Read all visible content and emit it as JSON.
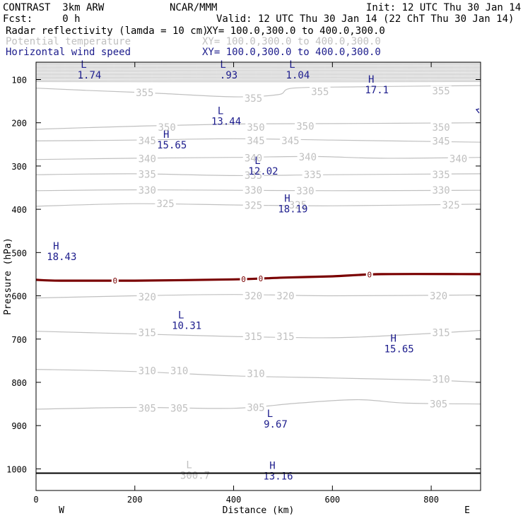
{
  "header": {
    "model": "CONTRAST  3km ARW",
    "org": "NCAR/MMM",
    "init": "Init: 12 UTC Thu 30 Jan 14",
    "fcst": "Fcst:     0 h",
    "valid": "Valid: 12 UTC Thu 30 Jan 14 (22 ChT Thu 30 Jan 14)",
    "fields": [
      {
        "name": "Radar reflectivity (lamda = 10 cm)",
        "xy": "XY= 100.0,300.0 to 400.0,300.0",
        "color": "#000000"
      },
      {
        "name": "Potential temperature",
        "xy": "XY= 100.0,300.0 to 400.0,300.0",
        "color": "#c0c0c0"
      },
      {
        "name": "Horizontal wind speed",
        "xy": "XY= 100.0,300.0 to 400.0,300.0",
        "color": "#1c1c8c"
      }
    ]
  },
  "chart_data": {
    "type": "cross-section contour",
    "xlabel": "Distance (km)",
    "ylabel": "Pressure (hPa)",
    "xlim": [
      0,
      900
    ],
    "ylim": [
      1050,
      60
    ],
    "x_ticks": [
      0,
      200,
      400,
      600,
      800
    ],
    "x_tick_labels": [
      "0",
      "200",
      "400",
      "600",
      "800"
    ],
    "y_ticks": [
      100,
      200,
      300,
      400,
      500,
      600,
      700,
      800,
      900,
      1000
    ],
    "y_tick_labels": [
      "100",
      "200",
      "300",
      "400",
      "500",
      "600",
      "700",
      "800",
      "900",
      "1000"
    ],
    "x_end_labels": {
      "left": "W",
      "right": "E"
    },
    "colors": {
      "theta": "#c0c0c0",
      "wind": "#1c1c8c",
      "zero": "#7a0000",
      "axis": "#000000"
    },
    "theta_contours": [
      {
        "label": "355",
        "points": [
          [
            0,
            120
          ],
          [
            100,
            125
          ],
          [
            250,
            132
          ],
          [
            400,
            140
          ],
          [
            490,
            135
          ],
          [
            520,
            120
          ],
          [
            650,
            117
          ],
          [
            800,
            115
          ],
          [
            900,
            114
          ]
        ],
        "labels_at": [
          220,
          440,
          620,
          820
        ]
      },
      {
        "label": "350",
        "points": [
          [
            0,
            215
          ],
          [
            200,
            208
          ],
          [
            400,
            203
          ],
          [
            600,
            202
          ],
          [
            900,
            200
          ]
        ],
        "labels_at": [
          265,
          445,
          545,
          820
        ]
      },
      {
        "label": "345",
        "points": [
          [
            0,
            242
          ],
          [
            200,
            240
          ],
          [
            400,
            237
          ],
          [
            600,
            240
          ],
          [
            900,
            245
          ]
        ],
        "labels_at": [
          220,
          440,
          510,
          820
        ]
      },
      {
        "label": "340",
        "points": [
          [
            0,
            285
          ],
          [
            200,
            282
          ],
          [
            400,
            280
          ],
          [
            560,
            278
          ],
          [
            700,
            282
          ],
          [
            900,
            280
          ]
        ],
        "labels_at": [
          220,
          440,
          550,
          850
        ]
      },
      {
        "label": "335",
        "points": [
          [
            0,
            320
          ],
          [
            200,
            318
          ],
          [
            400,
            322
          ],
          [
            600,
            320
          ],
          [
            900,
            318
          ]
        ],
        "labels_at": [
          220,
          440,
          550,
          820
        ]
      },
      {
        "label": "330",
        "points": [
          [
            0,
            357
          ],
          [
            200,
            355
          ],
          [
            400,
            356
          ],
          [
            600,
            357
          ],
          [
            900,
            356
          ]
        ],
        "labels_at": [
          220,
          440,
          550,
          820
        ]
      },
      {
        "label": "325",
        "points": [
          [
            0,
            393
          ],
          [
            200,
            387
          ],
          [
            400,
            390
          ],
          [
            600,
            392
          ],
          [
            900,
            388
          ]
        ],
        "labels_at": [
          220,
          440,
          530,
          840
        ]
      },
      {
        "label": "320",
        "points": [
          [
            0,
            605
          ],
          [
            200,
            600
          ],
          [
            400,
            597
          ],
          [
            600,
            600
          ],
          [
            900,
            598
          ]
        ],
        "labels_at": [
          220,
          450,
          500,
          820
        ]
      },
      {
        "label": "315",
        "points": [
          [
            0,
            682
          ],
          [
            200,
            688
          ],
          [
            400,
            694
          ],
          [
            600,
            697
          ],
          [
            750,
            690
          ],
          [
            900,
            680
          ]
        ],
        "labels_at": [
          220,
          440,
          500,
          820
        ]
      },
      {
        "label": "310",
        "points": [
          [
            0,
            770
          ],
          [
            200,
            775
          ],
          [
            400,
            785
          ],
          [
            600,
            790
          ],
          [
            800,
            795
          ],
          [
            900,
            800
          ]
        ],
        "labels_at": [
          220,
          280,
          440,
          820
        ]
      },
      {
        "label": "305",
        "points": [
          [
            0,
            862
          ],
          [
            200,
            858
          ],
          [
            400,
            860
          ],
          [
            530,
            848
          ],
          [
            650,
            840
          ],
          [
            750,
            848
          ],
          [
            900,
            850
          ]
        ],
        "labels_at": [
          220,
          280,
          440,
          820
        ]
      }
    ],
    "theta_labels": [
      {
        "text": "355",
        "x": 220,
        "p": 130
      },
      {
        "text": "355",
        "x": 440,
        "p": 143
      },
      {
        "text": "355",
        "x": 575,
        "p": 128
      },
      {
        "text": "355",
        "x": 820,
        "p": 126
      },
      {
        "text": "350",
        "x": 265,
        "p": 210
      },
      {
        "text": "350",
        "x": 445,
        "p": 210
      },
      {
        "text": "350",
        "x": 545,
        "p": 208
      },
      {
        "text": "350",
        "x": 820,
        "p": 210
      },
      {
        "text": "345",
        "x": 225,
        "p": 241
      },
      {
        "text": "345",
        "x": 445,
        "p": 241
      },
      {
        "text": "345",
        "x": 515,
        "p": 241
      },
      {
        "text": "345",
        "x": 820,
        "p": 242
      },
      {
        "text": "340",
        "x": 225,
        "p": 283
      },
      {
        "text": "340",
        "x": 440,
        "p": 281
      },
      {
        "text": "340",
        "x": 550,
        "p": 279
      },
      {
        "text": "340",
        "x": 855,
        "p": 283
      },
      {
        "text": "335",
        "x": 225,
        "p": 319
      },
      {
        "text": "335",
        "x": 440,
        "p": 321
      },
      {
        "text": "335",
        "x": 560,
        "p": 320
      },
      {
        "text": "335",
        "x": 820,
        "p": 320
      },
      {
        "text": "330",
        "x": 225,
        "p": 356
      },
      {
        "text": "330",
        "x": 440,
        "p": 356
      },
      {
        "text": "330",
        "x": 545,
        "p": 357
      },
      {
        "text": "330",
        "x": 820,
        "p": 356
      },
      {
        "text": "325",
        "x": 262,
        "p": 387
      },
      {
        "text": "325",
        "x": 440,
        "p": 391
      },
      {
        "text": "325",
        "x": 530,
        "p": 390
      },
      {
        "text": "325",
        "x": 840,
        "p": 390
      },
      {
        "text": "320",
        "x": 225,
        "p": 602
      },
      {
        "text": "320",
        "x": 440,
        "p": 600
      },
      {
        "text": "320",
        "x": 505,
        "p": 600
      },
      {
        "text": "320",
        "x": 815,
        "p": 600
      },
      {
        "text": "315",
        "x": 225,
        "p": 685
      },
      {
        "text": "315",
        "x": 440,
        "p": 694
      },
      {
        "text": "315",
        "x": 505,
        "p": 694
      },
      {
        "text": "315",
        "x": 820,
        "p": 685
      },
      {
        "text": "310",
        "x": 225,
        "p": 773
      },
      {
        "text": "310",
        "x": 290,
        "p": 773
      },
      {
        "text": "310",
        "x": 445,
        "p": 780
      },
      {
        "text": "310",
        "x": 820,
        "p": 793
      },
      {
        "text": "305",
        "x": 225,
        "p": 860
      },
      {
        "text": "305",
        "x": 290,
        "p": 860
      },
      {
        "text": "305",
        "x": 445,
        "p": 858
      },
      {
        "text": "305",
        "x": 815,
        "p": 850
      },
      {
        "text": "300.7",
        "x": 322,
        "p": 1015
      }
    ],
    "theta_markers": [
      {
        "letter": "L",
        "x": 310,
        "p": 990,
        "value": "300.7"
      }
    ],
    "wind_extrema": [
      {
        "letter": "L",
        "value": "1.74",
        "x": 108,
        "p": 73
      },
      {
        "letter": "L",
        "value": ".93",
        "x": 390,
        "p": 73
      },
      {
        "letter": "L",
        "value": "1.04",
        "x": 530,
        "p": 73
      },
      {
        "letter": "H",
        "value": "17.1",
        "x": 690,
        "p": 107
      },
      {
        "letter": "L",
        "value": "13.44",
        "x": 385,
        "p": 180
      },
      {
        "letter": "H",
        "value": "15.65",
        "x": 275,
        "p": 235
      },
      {
        "letter": "L",
        "value": "12.02",
        "x": 460,
        "p": 295
      },
      {
        "letter": "H",
        "value": "18.19",
        "x": 520,
        "p": 383
      },
      {
        "letter": "H",
        "value": "18.43",
        "x": 52,
        "p": 493
      },
      {
        "letter": "L",
        "value": "10.31",
        "x": 305,
        "p": 652
      },
      {
        "letter": "H",
        "value": "15.65",
        "x": 735,
        "p": 706
      },
      {
        "letter": "L",
        "value": "9.67",
        "x": 485,
        "p": 880
      },
      {
        "letter": "H",
        "value": "13.16",
        "x": 490,
        "p": 1000
      }
    ],
    "zero_contour": {
      "label": "0",
      "points": [
        [
          0,
          563
        ],
        [
          50,
          565
        ],
        [
          200,
          565
        ],
        [
          400,
          562
        ],
        [
          500,
          558
        ],
        [
          600,
          555
        ],
        [
          700,
          550
        ],
        [
          900,
          550
        ]
      ],
      "labels_at": [
        160,
        420,
        455,
        675
      ]
    },
    "ground_line_p": 1010
  }
}
